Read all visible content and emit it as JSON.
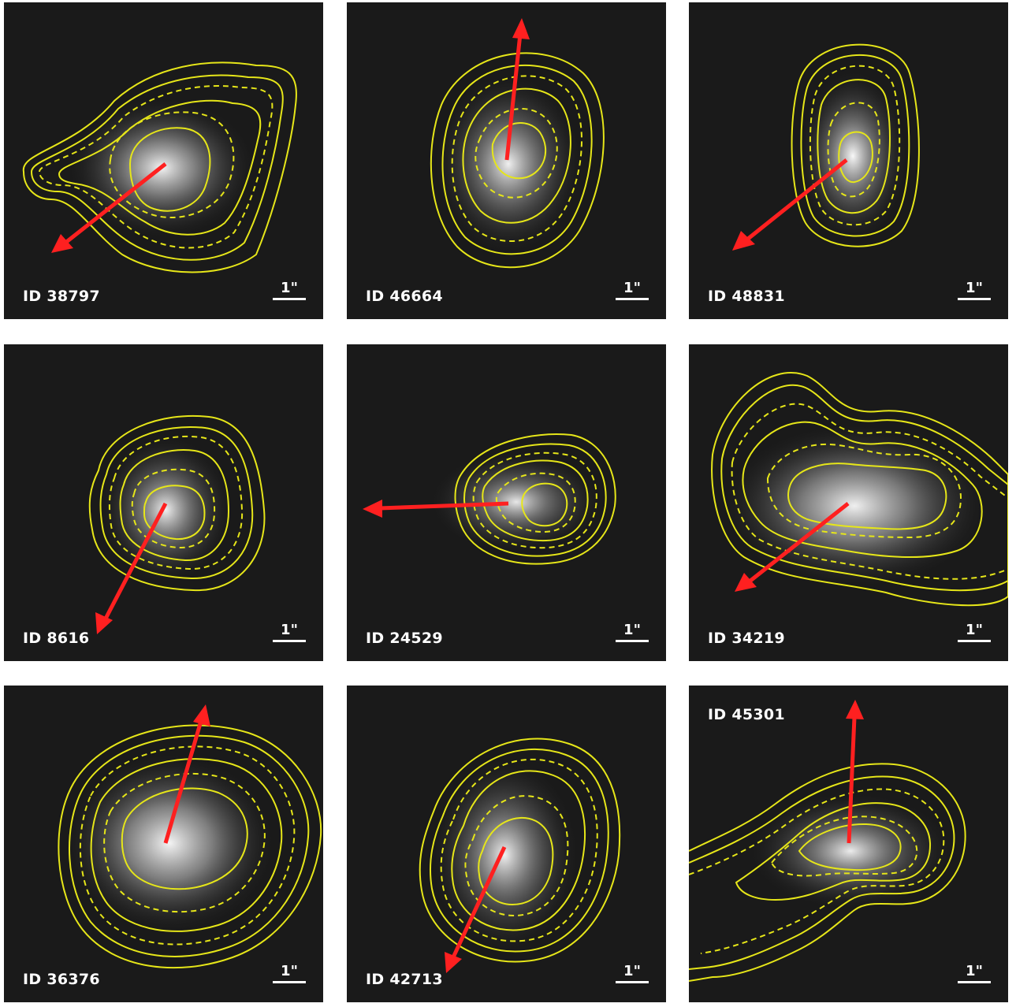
{
  "colors": {
    "background": "#1a1a1a",
    "contour": "#e6e619",
    "arrow": "#ff2020",
    "label": "#ffffff"
  },
  "panels": [
    {
      "id_label": "ID 38797",
      "scale_label": "1\""
    },
    {
      "id_label": "ID 46664",
      "scale_label": "1\""
    },
    {
      "id_label": "ID 48831",
      "scale_label": "1\""
    },
    {
      "id_label": "ID 8616",
      "scale_label": "1\""
    },
    {
      "id_label": "ID 24529",
      "scale_label": "1\""
    },
    {
      "id_label": "ID 34219",
      "scale_label": "1\""
    },
    {
      "id_label": "ID 36376",
      "scale_label": "1\""
    },
    {
      "id_label": "ID 42713",
      "scale_label": "1\""
    },
    {
      "id_label": "ID 45301",
      "scale_label": "1\""
    }
  ]
}
